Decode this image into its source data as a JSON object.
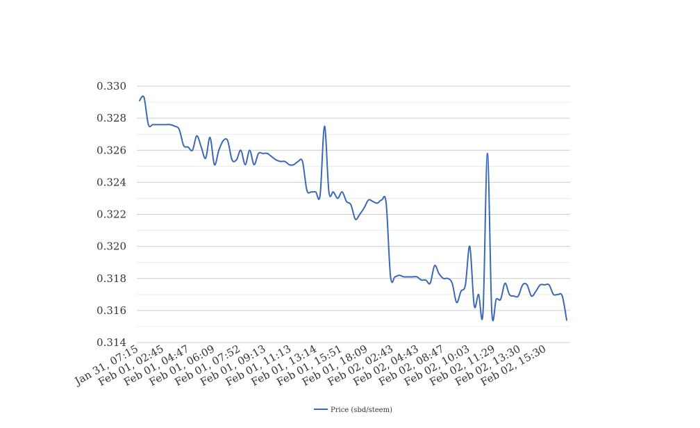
{
  "chart_data": {
    "type": "line",
    "title": "",
    "xlabel": "",
    "ylabel": "",
    "ylim": [
      0.314,
      0.33
    ],
    "yticks": [
      "0.314",
      "0.316",
      "0.318",
      "0.320",
      "0.322",
      "0.324",
      "0.326",
      "0.328",
      "0.330"
    ],
    "grid": true,
    "legend_position": "bottom",
    "x_tick_labels": [
      "Jan 31, 07:15",
      "Feb 01, 02:45",
      "Feb 01, 04:47",
      "Feb 01, 06:09",
      "Feb 01, 07:52",
      "Feb 01, 09:13",
      "Feb 01, 11:13",
      "Feb 01, 13:14",
      "Feb 01, 15:51",
      "Feb 01, 18:09",
      "Feb 02, 02:43",
      "Feb 02, 04:43",
      "Feb 02, 08:47",
      "Feb 02, 10:03",
      "Feb 02, 11:29",
      "Feb 02, 13:30",
      "Feb 02, 15:30"
    ],
    "series": [
      {
        "name": "Price (sbd/steem)",
        "color": "#3a67b7",
        "values": [
          0.3291,
          0.3293,
          0.3276,
          0.3276,
          0.3276,
          0.3276,
          0.3276,
          0.3276,
          0.3275,
          0.3273,
          0.3263,
          0.3262,
          0.326,
          0.3269,
          0.3262,
          0.3255,
          0.3268,
          0.3251,
          0.326,
          0.3266,
          0.3266,
          0.3254,
          0.3254,
          0.326,
          0.3251,
          0.326,
          0.3251,
          0.3258,
          0.3258,
          0.3258,
          0.3256,
          0.3254,
          0.3253,
          0.3253,
          0.3251,
          0.3251,
          0.3253,
          0.3253,
          0.3235,
          0.3234,
          0.3234,
          0.3232,
          0.3275,
          0.3234,
          0.3234,
          0.323,
          0.3234,
          0.3228,
          0.3226,
          0.3217,
          0.322,
          0.3224,
          0.3229,
          0.3228,
          0.3227,
          0.3229,
          0.3227,
          0.3181,
          0.3181,
          0.3182,
          0.3181,
          0.3181,
          0.3181,
          0.3181,
          0.3179,
          0.3179,
          0.3177,
          0.3188,
          0.3183,
          0.318,
          0.318,
          0.3177,
          0.3165,
          0.3172,
          0.3176,
          0.32,
          0.3163,
          0.317,
          0.3159,
          0.3258,
          0.3159,
          0.3167,
          0.3167,
          0.3177,
          0.317,
          0.3169,
          0.3169,
          0.3176,
          0.3176,
          0.3169,
          0.3172,
          0.3176,
          0.3176,
          0.3176,
          0.317,
          0.317,
          0.3169,
          0.3154
        ]
      }
    ]
  }
}
